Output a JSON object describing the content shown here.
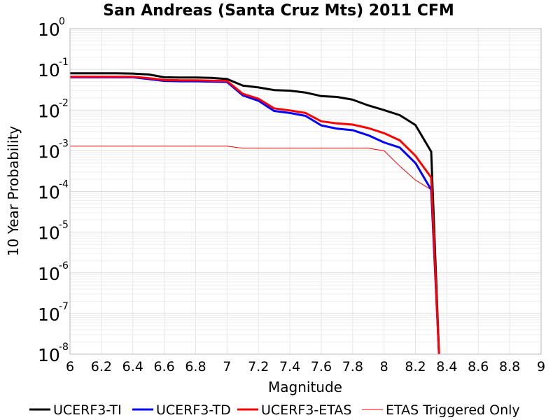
{
  "chart_data": {
    "type": "line",
    "title": "San Andreas (Santa Cruz Mts) 2011 CFM",
    "xlabel": "Magnitude",
    "ylabel": "10 Year Probability",
    "xlim": [
      6,
      9
    ],
    "ylim": [
      1e-08,
      1
    ],
    "yscale": "log",
    "grid": true,
    "legend_position": "bottom",
    "x_ticks": [
      "6",
      "6.2",
      "6.4",
      "6.6",
      "6.8",
      "7",
      "7.2",
      "7.4",
      "7.6",
      "7.8",
      "8",
      "8.2",
      "8.4",
      "8.6",
      "8.8",
      "9"
    ],
    "y_ticks": [
      {
        "base": "10",
        "exp": "0"
      },
      {
        "base": "10",
        "exp": "-1"
      },
      {
        "base": "10",
        "exp": "-2"
      },
      {
        "base": "10",
        "exp": "-3"
      },
      {
        "base": "10",
        "exp": "-4"
      },
      {
        "base": "10",
        "exp": "-5"
      },
      {
        "base": "10",
        "exp": "-6"
      },
      {
        "base": "10",
        "exp": "-7"
      },
      {
        "base": "10",
        "exp": "-8"
      }
    ],
    "series": [
      {
        "name": "UCERF3-TI",
        "color": "#000000",
        "style": "thick",
        "x": [
          6.0,
          6.1,
          6.2,
          6.3,
          6.4,
          6.5,
          6.6,
          6.7,
          6.8,
          6.9,
          7.0,
          7.1,
          7.2,
          7.3,
          7.4,
          7.5,
          7.6,
          7.7,
          7.8,
          7.9,
          8.0,
          8.1,
          8.2,
          8.3,
          8.35
        ],
        "y": [
          0.08,
          0.08,
          0.08,
          0.08,
          0.079,
          0.075,
          0.064,
          0.063,
          0.063,
          0.062,
          0.058,
          0.04,
          0.036,
          0.031,
          0.03,
          0.027,
          0.022,
          0.021,
          0.018,
          0.013,
          0.01,
          0.0075,
          0.0043,
          0.00095,
          1e-08
        ]
      },
      {
        "name": "UCERF3-TD",
        "color": "#0000ff",
        "style": "thick",
        "x": [
          6.0,
          6.1,
          6.2,
          6.3,
          6.4,
          6.5,
          6.6,
          6.7,
          6.8,
          6.9,
          7.0,
          7.1,
          7.2,
          7.3,
          7.4,
          7.5,
          7.6,
          7.7,
          7.8,
          7.9,
          8.0,
          8.1,
          8.2,
          8.3,
          8.35
        ],
        "y": [
          0.064,
          0.064,
          0.064,
          0.064,
          0.064,
          0.058,
          0.052,
          0.051,
          0.051,
          0.05,
          0.049,
          0.023,
          0.017,
          0.0095,
          0.0085,
          0.0072,
          0.0042,
          0.0035,
          0.0032,
          0.0024,
          0.0016,
          0.0012,
          0.0005,
          0.00011,
          1e-08
        ]
      },
      {
        "name": "UCERF3-ETAS",
        "color": "#ff0000",
        "style": "thick",
        "x": [
          6.0,
          6.1,
          6.2,
          6.3,
          6.4,
          6.5,
          6.6,
          6.7,
          6.8,
          6.9,
          7.0,
          7.1,
          7.2,
          7.3,
          7.4,
          7.5,
          7.6,
          7.7,
          7.8,
          7.9,
          8.0,
          8.1,
          8.2,
          8.3,
          8.35
        ],
        "y": [
          0.066,
          0.066,
          0.066,
          0.066,
          0.066,
          0.061,
          0.055,
          0.054,
          0.054,
          0.053,
          0.052,
          0.025,
          0.019,
          0.011,
          0.0098,
          0.0085,
          0.0053,
          0.0047,
          0.0044,
          0.0036,
          0.0027,
          0.0018,
          0.00075,
          0.00022,
          1e-08
        ]
      },
      {
        "name": "ETAS Triggered Only",
        "color": "#ff0000",
        "style": "thin",
        "x": [
          6.0,
          6.1,
          6.2,
          6.3,
          6.4,
          6.5,
          6.6,
          6.7,
          6.8,
          6.9,
          7.0,
          7.1,
          7.2,
          7.3,
          7.4,
          7.5,
          7.6,
          7.7,
          7.8,
          7.9,
          8.0,
          8.1,
          8.2,
          8.3,
          8.35
        ],
        "y": [
          0.0013,
          0.0013,
          0.0013,
          0.0013,
          0.0013,
          0.0013,
          0.0013,
          0.0013,
          0.0013,
          0.0013,
          0.0013,
          0.00115,
          0.00115,
          0.00115,
          0.00115,
          0.00115,
          0.00115,
          0.00115,
          0.00115,
          0.00115,
          0.001,
          0.00042,
          0.00019,
          0.00011,
          1e-08
        ]
      }
    ]
  }
}
